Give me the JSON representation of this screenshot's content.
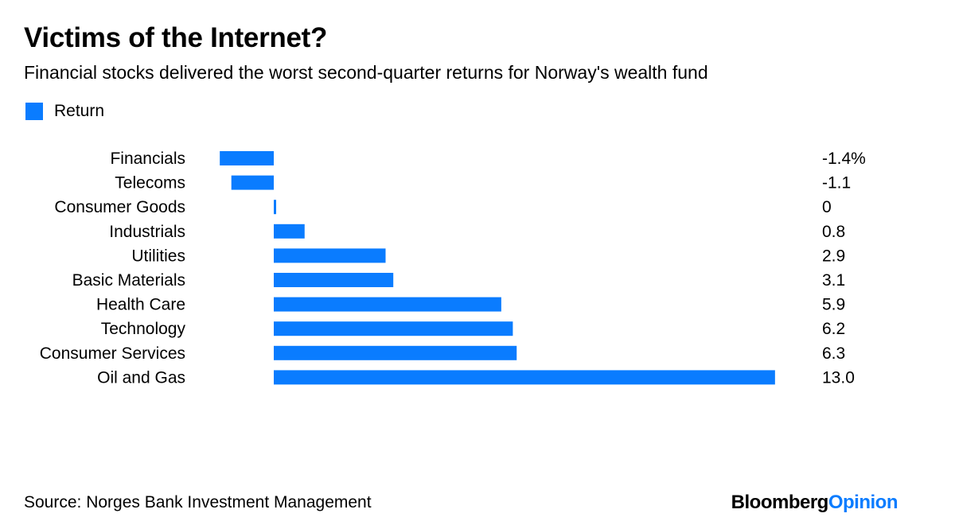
{
  "header": {
    "title": "Victims of the Internet?",
    "subtitle": "Financial stocks delivered the worst second-quarter returns for Norway's wealth fund"
  },
  "legend": {
    "label": "Return"
  },
  "colors": {
    "bar": "#0a7cff",
    "brand_accent": "#0a7cff"
  },
  "chart_data": {
    "type": "bar",
    "orientation": "horizontal",
    "categories": [
      "Financials",
      "Telecoms",
      "Consumer Goods",
      "Industrials",
      "Utilities",
      "Basic Materials",
      "Health Care",
      "Technology",
      "Consumer Services",
      "Oil and Gas"
    ],
    "series": [
      {
        "name": "Return",
        "values": [
          -1.4,
          -1.1,
          0,
          0.8,
          2.9,
          3.1,
          5.9,
          6.2,
          6.3,
          13.0
        ]
      }
    ],
    "value_labels": [
      "-1.4%",
      "-1.1",
      "0",
      "0.8",
      "2.9",
      "3.1",
      "5.9",
      "6.2",
      "6.3",
      "13.0"
    ],
    "title": "Victims of the Internet?",
    "subtitle": "Financial stocks delivered the worst second-quarter returns for Norway's wealth fund",
    "xlim": [
      -1.4,
      13.0
    ],
    "grid": false,
    "legend_position": "top-left"
  },
  "footer": {
    "source": "Source: Norges Bank Investment Management",
    "brand_part1": "Bloomberg",
    "brand_part2": "Opinion"
  }
}
